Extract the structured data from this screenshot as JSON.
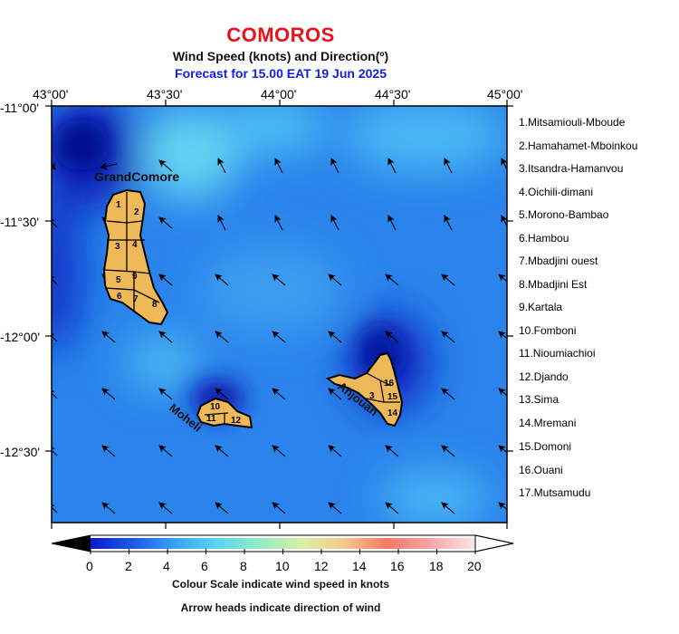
{
  "header": {
    "title": "COMOROS",
    "subtitle": "Wind Speed (knots) and Direction(º)",
    "forecast": "Forecast for  15.00 EAT 19 Jun 2025"
  },
  "axes": {
    "lon_labels": [
      "43°00'",
      "43°30'",
      "44°00'",
      "44°30'",
      "45°00'"
    ],
    "lat_labels": [
      "-11°00'",
      "-11°30'",
      "-12°00'",
      "-12°30'"
    ]
  },
  "islands": {
    "grand_comore": "GrandComore",
    "moheli": "Moheli",
    "anjouan": "Anjouan",
    "district_numbers": {
      "gc": [
        "1",
        "2",
        "3",
        "4",
        "5",
        "9",
        "6",
        "7",
        "8"
      ],
      "mo": [
        "10",
        "11",
        "12"
      ],
      "an": [
        "16",
        "3",
        "15",
        "14"
      ]
    }
  },
  "regions": [
    "1.Mitsamiouli-Mboude",
    "2.Hamahamet-Mboinkou",
    "3.Itsandra-Hamanvou",
    "4.Oichili-dimani",
    "5.Morono-Bambao",
    "6.Hambou",
    "7.Mbadjini ouest",
    "8.Mbadjini Est",
    "9.Kartala",
    "10.Fomboni",
    "11.Nioumiachioi",
    "12.Djando",
    "13.Sima",
    "14.Mremani",
    "15.Domoni",
    "16.Ouani",
    "17.Mutsamudu"
  ],
  "colorbar": {
    "ticks": [
      "0",
      "2",
      "4",
      "6",
      "8",
      "10",
      "12",
      "14",
      "16",
      "18",
      "20"
    ],
    "colors": [
      "#03028a",
      "#0b1fc9",
      "#1f5fe8",
      "#3aa6f5",
      "#5cd7f0",
      "#96eec0",
      "#d8f0a0",
      "#f8c78a",
      "#f47868",
      "#f7a6a6",
      "#fde0e0",
      "#ffffff"
    ],
    "caption_1": "Colour Scale indicate wind speed in knots",
    "caption_2": "Arrow heads indicate direction of wind"
  }
}
